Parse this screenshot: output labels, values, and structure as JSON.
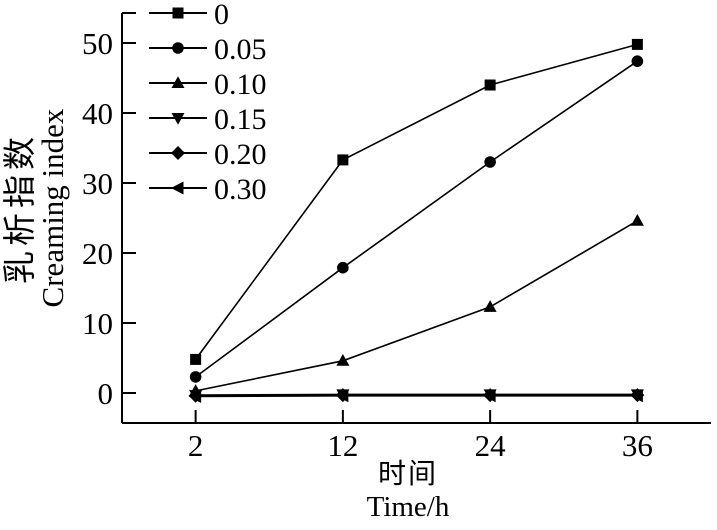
{
  "figure": {
    "background": "#ffffff",
    "line_color": "#000000"
  },
  "axis_titles": {
    "x_cn": "时间",
    "x_en": "Time/h",
    "y_cn": "乳析指数",
    "y_en": "Creaming index"
  },
  "chart_data": {
    "type": "line",
    "title": "",
    "xlabel": "时间 Time/h",
    "ylabel": "乳析指数 Creaming index",
    "x": [
      2,
      12,
      24,
      36
    ],
    "x_ticks": [
      "2",
      "12",
      "24",
      "36"
    ],
    "y_ticks": [
      0,
      10,
      20,
      30,
      40,
      50
    ],
    "ylim": [
      -4.3,
      54.3
    ],
    "grid": false,
    "legend_position": "top-left",
    "marker_color": "#000000",
    "series": [
      {
        "name": "0",
        "marker": "square",
        "values": [
          4.8,
          33.3,
          44.0,
          49.8
        ]
      },
      {
        "name": "0.05",
        "marker": "circle",
        "values": [
          2.3,
          17.9,
          33.0,
          47.4
        ]
      },
      {
        "name": "0.10",
        "marker": "triangle-up",
        "values": [
          0.3,
          4.6,
          12.3,
          24.6
        ]
      },
      {
        "name": "0.15",
        "marker": "triangle-down",
        "values": [
          -0.3,
          -0.2,
          -0.2,
          -0.2
        ]
      },
      {
        "name": "0.20",
        "marker": "diamond",
        "values": [
          -0.4,
          -0.3,
          -0.3,
          -0.3
        ]
      },
      {
        "name": "0.30",
        "marker": "triangle-left",
        "values": [
          -0.5,
          -0.4,
          -0.4,
          -0.4
        ]
      }
    ]
  }
}
